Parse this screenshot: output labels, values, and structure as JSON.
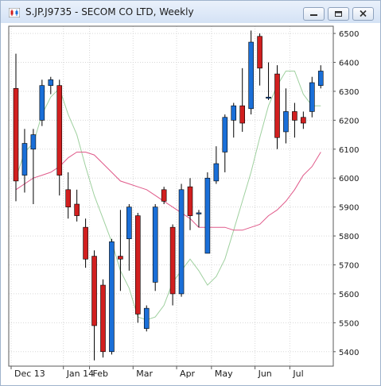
{
  "window": {
    "title": "S.JP.J9735 - SECOM CO LTD, Weekly",
    "icon": "candlestick-app-icon",
    "buttons": [
      "minimize-icon",
      "restore-icon",
      "close-icon"
    ]
  },
  "colors": {
    "up": "#1a6fd8",
    "down": "#d11f1f",
    "fast_ma": "#9fd09f",
    "slow_ma": "#e05a8a",
    "grid": "#d8d8d8",
    "border": "#5a5a5a"
  },
  "chart_data": {
    "type": "candlestick",
    "title": "S.JP.J9735 - SECOM CO LTD, Weekly",
    "ylim": [
      5350,
      6525
    ],
    "y_ticks": [
      5400,
      5500,
      5600,
      5700,
      5800,
      5900,
      6000,
      6100,
      6200,
      6300,
      6400,
      6500
    ],
    "y_tick_labels": [
      "5400",
      "5500",
      "5600",
      "5700",
      "5800",
      "5900",
      "6000",
      "6100",
      "6200",
      "6300",
      "6400",
      "6500"
    ],
    "x_ticks": [
      "Dec 13",
      "Jan 14",
      "Feb",
      "Mar",
      "Apr",
      "May",
      "Jun",
      "Jul"
    ],
    "x_tick_positions": [
      0,
      6,
      9,
      14,
      19,
      23,
      28,
      32
    ],
    "grid": true,
    "legend": "none",
    "candles": [
      {
        "open": 6310,
        "high": 6430,
        "low": 5920,
        "close": 5990
      },
      {
        "open": 6010,
        "high": 6170,
        "low": 5950,
        "close": 6120
      },
      {
        "open": 6100,
        "high": 6170,
        "low": 5910,
        "close": 6150
      },
      {
        "open": 6200,
        "high": 6340,
        "low": 6180,
        "close": 6320
      },
      {
        "open": 6320,
        "high": 6350,
        "low": 6290,
        "close": 6340
      },
      {
        "open": 6320,
        "high": 6340,
        "low": 5940,
        "close": 6010
      },
      {
        "open": 5960,
        "high": 6020,
        "low": 5860,
        "close": 5900
      },
      {
        "open": 5910,
        "high": 5960,
        "low": 5850,
        "close": 5870
      },
      {
        "open": 5830,
        "high": 5860,
        "low": 5690,
        "close": 5720
      },
      {
        "open": 5730,
        "high": 5750,
        "low": 5370,
        "close": 5490
      },
      {
        "open": 5630,
        "high": 5650,
        "low": 5380,
        "close": 5400
      },
      {
        "open": 5400,
        "high": 5790,
        "low": 5390,
        "close": 5780
      },
      {
        "open": 5730,
        "high": 5890,
        "low": 5610,
        "close": 5720
      },
      {
        "open": 5790,
        "high": 5910,
        "low": 5680,
        "close": 5900
      },
      {
        "open": 5870,
        "high": 5880,
        "low": 5500,
        "close": 5530
      },
      {
        "open": 5480,
        "high": 5560,
        "low": 5470,
        "close": 5550
      },
      {
        "open": 5640,
        "high": 5910,
        "low": 5610,
        "close": 5900
      },
      {
        "open": 5960,
        "high": 5970,
        "low": 5910,
        "close": 5920
      },
      {
        "open": 5830,
        "high": 5840,
        "low": 5560,
        "close": 5600
      },
      {
        "open": 5600,
        "high": 5980,
        "low": 5590,
        "close": 5960
      },
      {
        "open": 5970,
        "high": 6000,
        "low": 5820,
        "close": 5870
      },
      {
        "open": 5880,
        "high": 5890,
        "low": 5830,
        "close": 5880
      },
      {
        "open": 5740,
        "high": 6020,
        "low": 5740,
        "close": 6000
      },
      {
        "open": 5990,
        "high": 6110,
        "low": 5980,
        "close": 6050
      },
      {
        "open": 6090,
        "high": 6220,
        "low": 6020,
        "close": 6210
      },
      {
        "open": 6200,
        "high": 6260,
        "low": 6140,
        "close": 6250
      },
      {
        "open": 6250,
        "high": 6380,
        "low": 6160,
        "close": 6190
      },
      {
        "open": 6240,
        "high": 6510,
        "low": 6220,
        "close": 6470
      },
      {
        "open": 6490,
        "high": 6500,
        "low": 6320,
        "close": 6380
      },
      {
        "open": 6280,
        "high": 6400,
        "low": 6270,
        "close": 6280
      },
      {
        "open": 6360,
        "high": 6390,
        "low": 6100,
        "close": 6140
      },
      {
        "open": 6160,
        "high": 6310,
        "low": 6120,
        "close": 6230
      },
      {
        "open": 6230,
        "high": 6260,
        "low": 6140,
        "close": 6200
      },
      {
        "open": 6210,
        "high": 6230,
        "low": 6170,
        "close": 6190
      },
      {
        "open": 6230,
        "high": 6350,
        "low": 6210,
        "close": 6330
      },
      {
        "open": 6320,
        "high": 6390,
        "low": 6310,
        "close": 6370
      }
    ],
    "series": [
      {
        "values": [
          6000,
          6090,
          6120,
          6220,
          6280,
          6310,
          6220,
          6150,
          6040,
          5940,
          5860,
          5780,
          5680,
          5620,
          5520,
          5510,
          5520,
          5560,
          5640,
          5680,
          5720,
          5680,
          5630,
          5660,
          5720,
          5820,
          5920,
          6020,
          6140,
          6250,
          6320,
          6370,
          6370,
          6290,
          6250,
          6250
        ]
      },
      {
        "values": [
          5960,
          5980,
          6000,
          6010,
          6020,
          6040,
          6070,
          6090,
          6090,
          6080,
          6050,
          6020,
          5990,
          5980,
          5970,
          5960,
          5940,
          5920,
          5900,
          5880,
          5860,
          5830,
          5830,
          5830,
          5830,
          5820,
          5820,
          5830,
          5840,
          5870,
          5890,
          5920,
          5960,
          6010,
          6040,
          6090
        ]
      }
    ]
  }
}
